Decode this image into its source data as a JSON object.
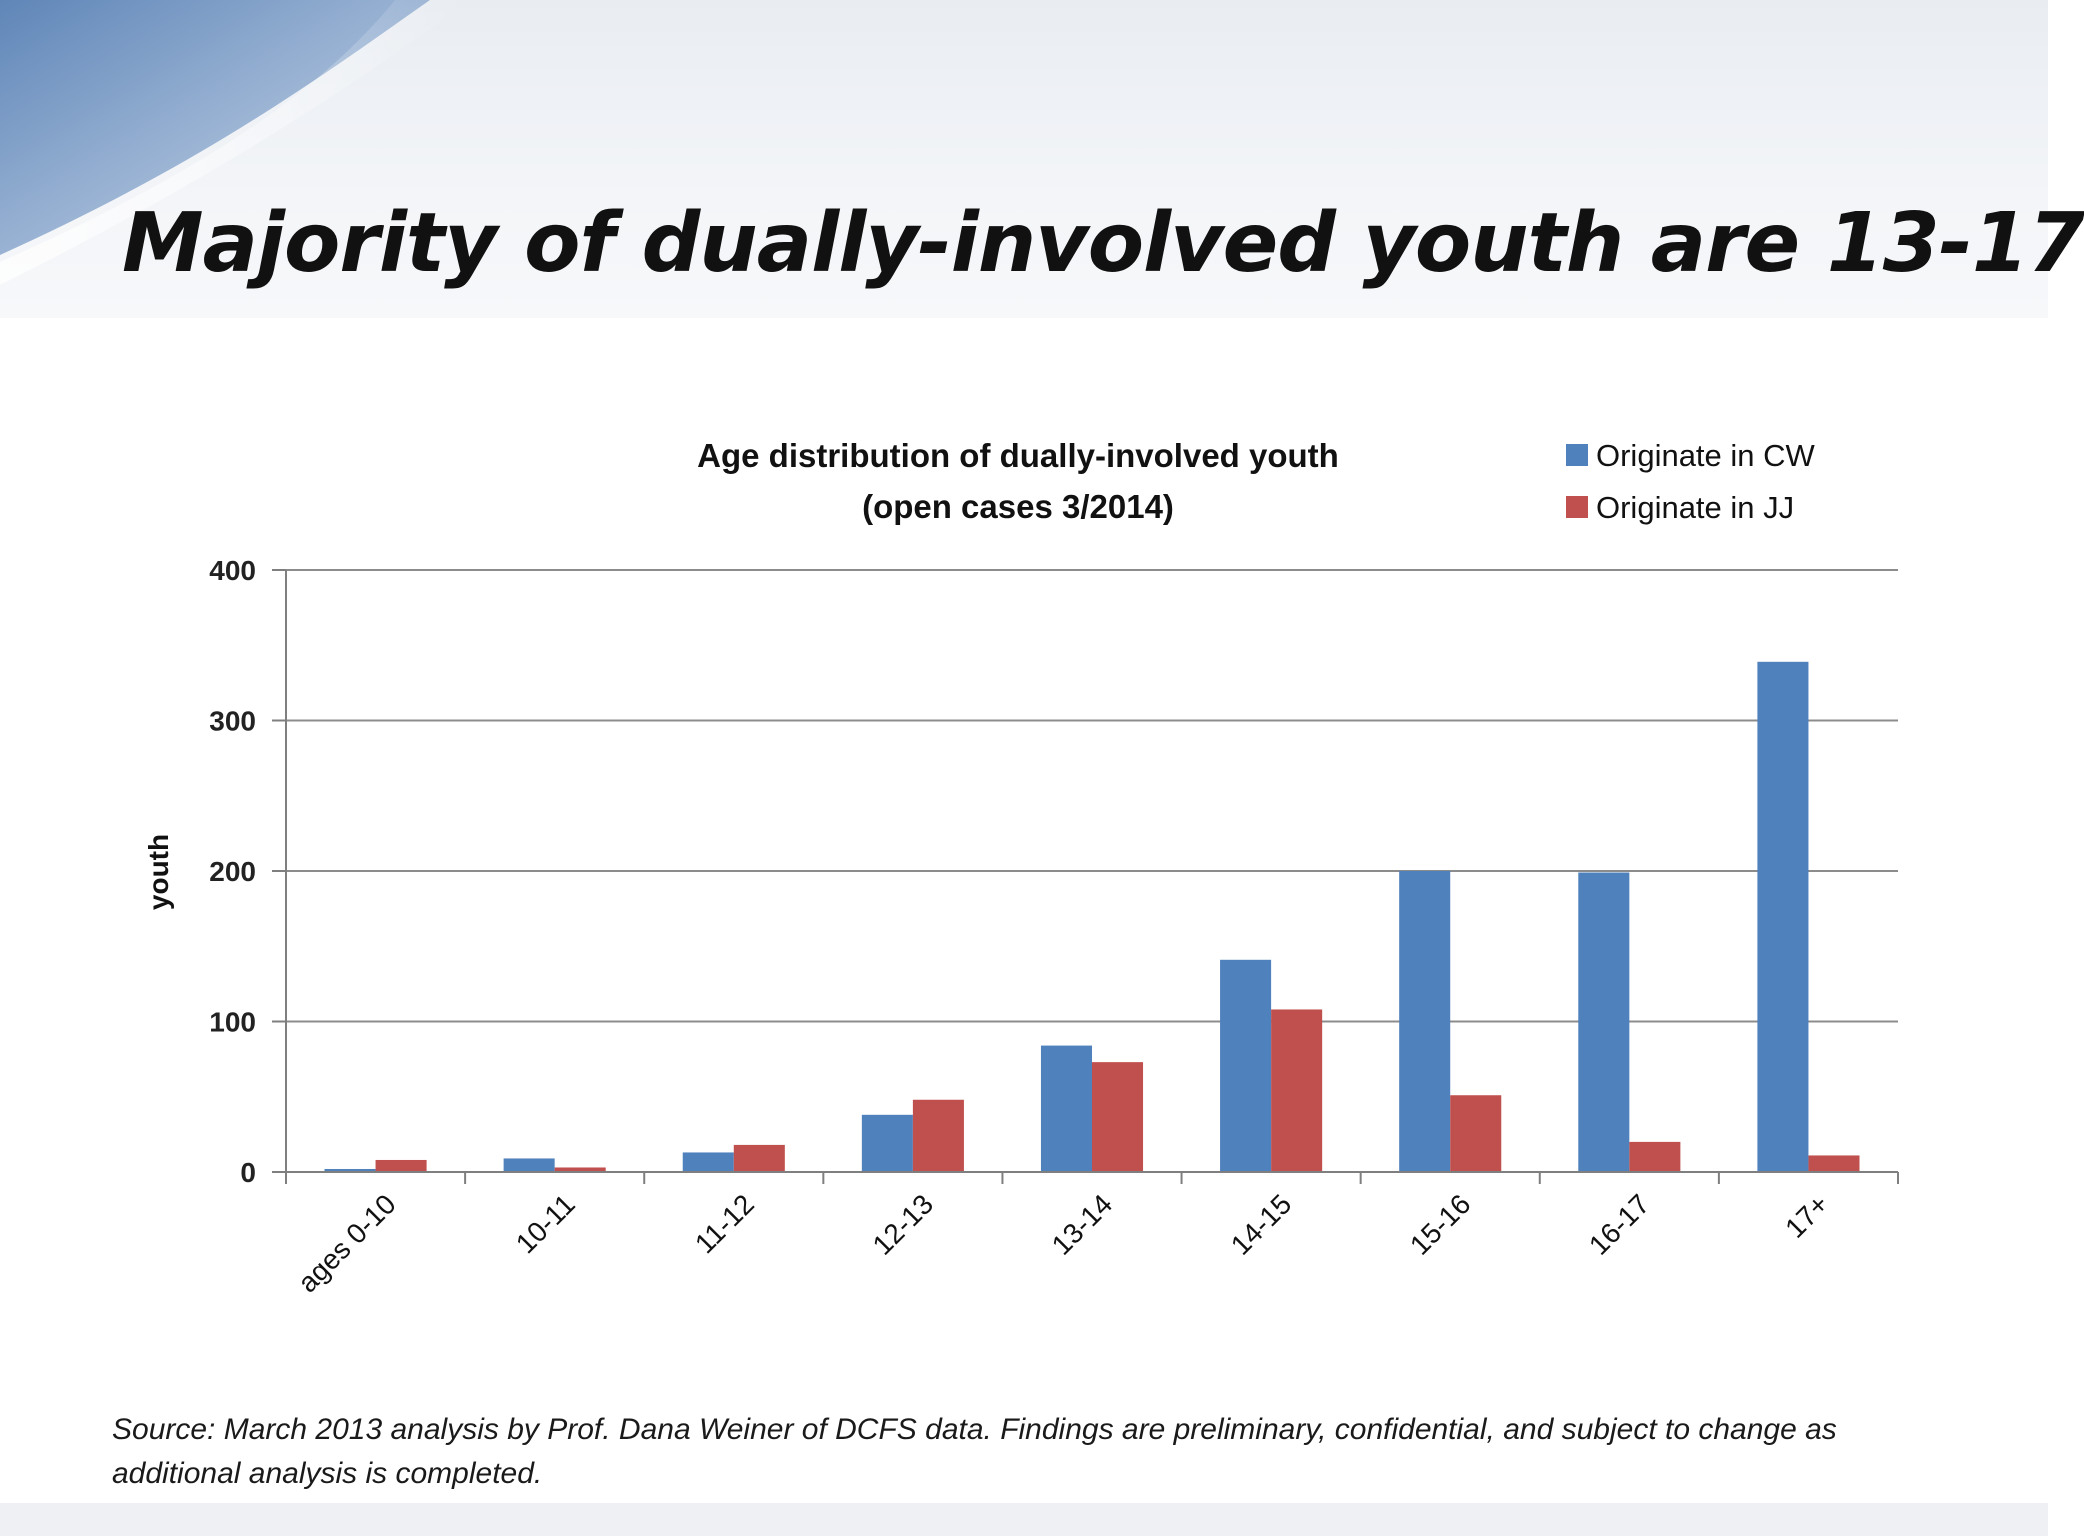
{
  "slide": {
    "title": "Majority of dually-involved youth are 13-17",
    "source_note": "Source: March 2013 analysis by Prof. Dana Weiner of DCFS data.  Findings are preliminary, confidential, and subject to change as additional analysis is completed."
  },
  "colors": {
    "cw": "#4f81bd",
    "jj": "#c0504d",
    "gridline": "#8c8c8c",
    "axis": "#7f7f7f"
  },
  "chart_data": {
    "type": "bar",
    "title": "Age distribution of dually-involved youth",
    "subtitle": "(open cases 3/2014)",
    "xlabel": "",
    "ylabel": "youth",
    "ylim": [
      0,
      400
    ],
    "yticks": [
      0,
      100,
      200,
      300,
      400
    ],
    "grid": true,
    "legend_position": "top-right",
    "categories": [
      "ages 0-10",
      "10-11",
      "11-12",
      "12-13",
      "13-14",
      "14-15",
      "15-16",
      "16-17",
      "17+"
    ],
    "series": [
      {
        "name": "Originate in CW",
        "color": "#4f81bd",
        "values": [
          2,
          9,
          13,
          38,
          84,
          141,
          200,
          199,
          339
        ]
      },
      {
        "name": "Originate in JJ",
        "color": "#c0504d",
        "values": [
          8,
          3,
          18,
          48,
          73,
          108,
          51,
          20,
          11
        ]
      }
    ]
  }
}
